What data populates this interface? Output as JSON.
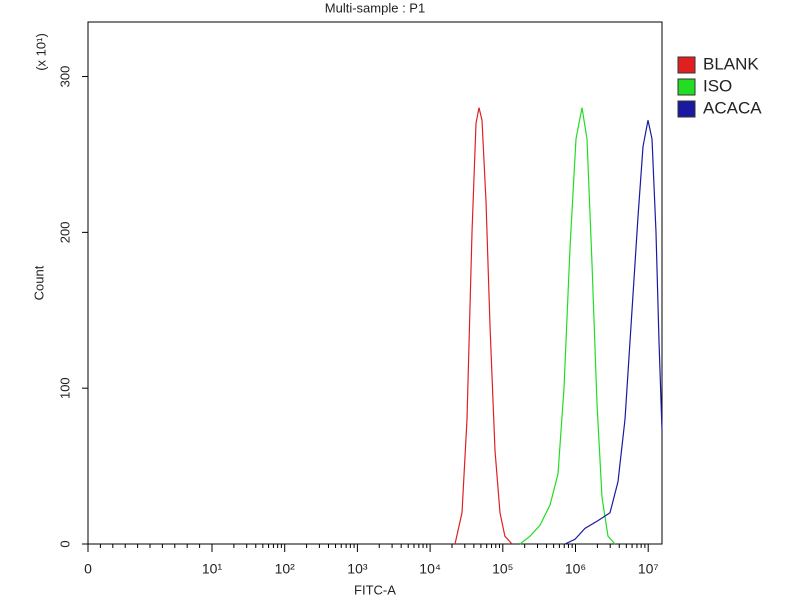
{
  "chart_data": {
    "type": "line",
    "title": "Multi-sample : P1",
    "x_label": "FITC-A",
    "y_label": "Count",
    "y_multiplier": "(x 10¹)",
    "xscale": "symlog",
    "xlim": [
      0,
      15480000
    ],
    "xticks": [
      0,
      {
        "value": 10,
        "label": "10¹"
      },
      {
        "value": 100,
        "label": "10²"
      },
      {
        "value": 1000,
        "label": "10³"
      },
      {
        "value": 10000,
        "label": "10⁴"
      },
      {
        "value": 100000,
        "label": "10⁵"
      },
      {
        "value": 1000000,
        "label": "10⁶"
      },
      {
        "value": 10000000,
        "label": "10⁷"
      }
    ],
    "ylim": [
      0,
      335
    ],
    "yticks": [
      0,
      100,
      200,
      300
    ],
    "legend": "right",
    "series": [
      {
        "name": "BLANK",
        "color": "#e02020",
        "x": [
          22000,
          27500,
          32200,
          37700,
          42800,
          47100,
          51800,
          58800,
          66700,
          78100,
          91500,
          107000,
          134000
        ],
        "values": [
          0,
          20,
          80,
          200,
          270,
          280,
          272,
          220,
          140,
          60,
          20,
          5,
          0
        ]
      },
      {
        "name": "ISO",
        "color": "#22dd22",
        "x": [
          172600,
          236700,
          325000,
          446000,
          574000,
          695000,
          840000,
          1016000,
          1228000,
          1439000,
          1686000,
          1977000,
          2312000,
          2797000,
          3493000
        ],
        "values": [
          0,
          5,
          12,
          25,
          45,
          100,
          190,
          260,
          280,
          260,
          180,
          90,
          30,
          5,
          0
        ]
      },
      {
        "name": "ACACA",
        "color": "#1a1aa0",
        "x": [
          718000,
          984000,
          1352000,
          2042000,
          2985000,
          3846000,
          4801000,
          5986000,
          7239000,
          8478000,
          9931000,
          11270000,
          12790000,
          14060000,
          15480000
        ],
        "values": [
          0,
          3,
          10,
          15,
          20,
          40,
          80,
          150,
          210,
          255,
          272,
          260,
          200,
          130,
          73
        ]
      }
    ]
  }
}
